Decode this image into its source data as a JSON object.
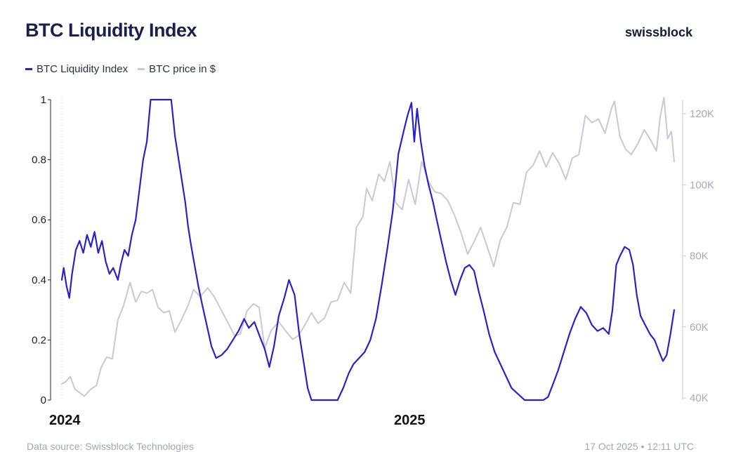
{
  "header": {
    "title": "BTC Liquidity Index",
    "brand": "swissblock"
  },
  "legend": [
    {
      "label": "BTC Liquidity Index",
      "color": "#2a22c9"
    },
    {
      "label": "BTC price in $",
      "color": "#c8c9d4"
    }
  ],
  "footer": {
    "source": "Data source: Swissblock Technologies",
    "timestamp": "17 Oct 2025 • 12:11 UTC"
  },
  "chart_data": {
    "type": "line",
    "title": "BTC Liquidity Index",
    "x_start": "2024-01-01",
    "x_end": "2025-10-17",
    "x_year_labels": [
      "2024",
      "2025"
    ],
    "y_left": {
      "label": "",
      "range": [
        0,
        1
      ],
      "ticks": [
        "0",
        "0.2",
        "0.4",
        "0.6",
        "0.8",
        "1"
      ]
    },
    "y_right": {
      "label": "",
      "range": [
        40000,
        125000
      ],
      "ticks": [
        "40K",
        "60K",
        "80K",
        "100K",
        "120K"
      ]
    },
    "grid": false,
    "legend_position": "top-left",
    "series": [
      {
        "name": "BTC Liquidity Index",
        "axis": "left",
        "color": "#2a22c9",
        "points": [
          [
            "2024-01-01",
            0.4
          ],
          [
            "2024-01-03",
            0.44
          ],
          [
            "2024-01-06",
            0.38
          ],
          [
            "2024-01-09",
            0.34
          ],
          [
            "2024-01-12",
            0.42
          ],
          [
            "2024-01-16",
            0.5
          ],
          [
            "2024-01-20",
            0.53
          ],
          [
            "2024-01-24",
            0.49
          ],
          [
            "2024-01-28",
            0.55
          ],
          [
            "2024-02-01",
            0.51
          ],
          [
            "2024-02-05",
            0.56
          ],
          [
            "2024-02-09",
            0.49
          ],
          [
            "2024-02-13",
            0.53
          ],
          [
            "2024-02-17",
            0.46
          ],
          [
            "2024-02-21",
            0.42
          ],
          [
            "2024-02-25",
            0.44
          ],
          [
            "2024-03-01",
            0.4
          ],
          [
            "2024-03-04",
            0.45
          ],
          [
            "2024-03-08",
            0.5
          ],
          [
            "2024-03-12",
            0.48
          ],
          [
            "2024-03-16",
            0.55
          ],
          [
            "2024-03-20",
            0.6
          ],
          [
            "2024-03-24",
            0.7
          ],
          [
            "2024-03-28",
            0.8
          ],
          [
            "2024-04-01",
            0.86
          ],
          [
            "2024-04-05",
            1.0
          ],
          [
            "2024-04-13",
            1.0
          ],
          [
            "2024-04-21",
            1.0
          ],
          [
            "2024-04-27",
            1.0
          ],
          [
            "2024-05-01",
            0.88
          ],
          [
            "2024-05-05",
            0.8
          ],
          [
            "2024-05-09",
            0.72
          ],
          [
            "2024-05-12",
            0.66
          ],
          [
            "2024-05-15",
            0.58
          ],
          [
            "2024-05-18",
            0.52
          ],
          [
            "2024-05-22",
            0.45
          ],
          [
            "2024-05-26",
            0.38
          ],
          [
            "2024-05-30",
            0.32
          ],
          [
            "2024-06-04",
            0.25
          ],
          [
            "2024-06-09",
            0.18
          ],
          [
            "2024-06-14",
            0.14
          ],
          [
            "2024-06-20",
            0.15
          ],
          [
            "2024-06-26",
            0.17
          ],
          [
            "2024-07-02",
            0.2
          ],
          [
            "2024-07-08",
            0.23
          ],
          [
            "2024-07-14",
            0.27
          ],
          [
            "2024-07-19",
            0.24
          ],
          [
            "2024-07-25",
            0.26
          ],
          [
            "2024-07-31",
            0.21
          ],
          [
            "2024-08-05",
            0.17
          ],
          [
            "2024-08-10",
            0.11
          ],
          [
            "2024-08-15",
            0.18
          ],
          [
            "2024-08-20",
            0.28
          ],
          [
            "2024-08-26",
            0.34
          ],
          [
            "2024-08-31",
            0.4
          ],
          [
            "2024-09-06",
            0.35
          ],
          [
            "2024-09-11",
            0.22
          ],
          [
            "2024-09-16",
            0.12
          ],
          [
            "2024-09-20",
            0.04
          ],
          [
            "2024-09-24",
            0.0
          ],
          [
            "2024-10-04",
            0.0
          ],
          [
            "2024-10-15",
            0.0
          ],
          [
            "2024-10-22",
            0.0
          ],
          [
            "2024-10-28",
            0.04
          ],
          [
            "2024-11-03",
            0.09
          ],
          [
            "2024-11-08",
            0.12
          ],
          [
            "2024-11-14",
            0.14
          ],
          [
            "2024-11-20",
            0.16
          ],
          [
            "2024-11-26",
            0.2
          ],
          [
            "2024-12-02",
            0.27
          ],
          [
            "2024-12-08",
            0.38
          ],
          [
            "2024-12-14",
            0.5
          ],
          [
            "2024-12-20",
            0.63
          ],
          [
            "2024-12-26",
            0.82
          ],
          [
            "2025-01-01",
            0.9
          ],
          [
            "2025-01-05",
            0.95
          ],
          [
            "2025-01-09",
            0.99
          ],
          [
            "2025-01-12",
            0.86
          ],
          [
            "2025-01-15",
            0.97
          ],
          [
            "2025-01-19",
            0.86
          ],
          [
            "2025-01-23",
            0.78
          ],
          [
            "2025-01-27",
            0.72
          ],
          [
            "2025-02-01",
            0.66
          ],
          [
            "2025-02-05",
            0.6
          ],
          [
            "2025-02-10",
            0.53
          ],
          [
            "2025-02-15",
            0.46
          ],
          [
            "2025-02-20",
            0.4
          ],
          [
            "2025-02-25",
            0.35
          ],
          [
            "2025-03-02",
            0.4
          ],
          [
            "2025-03-07",
            0.44
          ],
          [
            "2025-03-12",
            0.45
          ],
          [
            "2025-03-17",
            0.43
          ],
          [
            "2025-03-22",
            0.36
          ],
          [
            "2025-03-27",
            0.3
          ],
          [
            "2025-04-02",
            0.22
          ],
          [
            "2025-04-08",
            0.16
          ],
          [
            "2025-04-14",
            0.12
          ],
          [
            "2025-04-20",
            0.08
          ],
          [
            "2025-04-26",
            0.04
          ],
          [
            "2025-05-03",
            0.02
          ],
          [
            "2025-05-10",
            0.0
          ],
          [
            "2025-05-20",
            0.0
          ],
          [
            "2025-05-30",
            0.0
          ],
          [
            "2025-06-04",
            0.01
          ],
          [
            "2025-06-09",
            0.05
          ],
          [
            "2025-06-15",
            0.1
          ],
          [
            "2025-06-21",
            0.16
          ],
          [
            "2025-06-27",
            0.22
          ],
          [
            "2025-07-03",
            0.27
          ],
          [
            "2025-07-09",
            0.31
          ],
          [
            "2025-07-15",
            0.29
          ],
          [
            "2025-07-21",
            0.25
          ],
          [
            "2025-07-27",
            0.23
          ],
          [
            "2025-08-02",
            0.24
          ],
          [
            "2025-08-08",
            0.22
          ],
          [
            "2025-08-12",
            0.3
          ],
          [
            "2025-08-16",
            0.45
          ],
          [
            "2025-08-20",
            0.48
          ],
          [
            "2025-08-25",
            0.51
          ],
          [
            "2025-08-30",
            0.5
          ],
          [
            "2025-09-03",
            0.45
          ],
          [
            "2025-09-07",
            0.35
          ],
          [
            "2025-09-11",
            0.28
          ],
          [
            "2025-09-16",
            0.25
          ],
          [
            "2025-09-21",
            0.22
          ],
          [
            "2025-09-26",
            0.2
          ],
          [
            "2025-10-01",
            0.16
          ],
          [
            "2025-10-05",
            0.13
          ],
          [
            "2025-10-09",
            0.15
          ],
          [
            "2025-10-13",
            0.22
          ],
          [
            "2025-10-17",
            0.3
          ]
        ]
      },
      {
        "name": "BTC price in $",
        "axis": "right",
        "color": "#c8c9d4",
        "points": [
          [
            "2024-01-01",
            44000
          ],
          [
            "2024-01-05",
            44500
          ],
          [
            "2024-01-10",
            46000
          ],
          [
            "2024-01-15",
            42500
          ],
          [
            "2024-01-20",
            41500
          ],
          [
            "2024-01-25",
            40500
          ],
          [
            "2024-02-01",
            42500
          ],
          [
            "2024-02-07",
            43500
          ],
          [
            "2024-02-12",
            48500
          ],
          [
            "2024-02-18",
            51500
          ],
          [
            "2024-02-24",
            51000
          ],
          [
            "2024-03-01",
            62000
          ],
          [
            "2024-03-07",
            66000
          ],
          [
            "2024-03-14",
            72500
          ],
          [
            "2024-03-20",
            67000
          ],
          [
            "2024-03-26",
            70000
          ],
          [
            "2024-04-01",
            69500
          ],
          [
            "2024-04-07",
            70500
          ],
          [
            "2024-04-13",
            65500
          ],
          [
            "2024-04-19",
            64000
          ],
          [
            "2024-04-25",
            64500
          ],
          [
            "2024-05-01",
            58500
          ],
          [
            "2024-05-08",
            62000
          ],
          [
            "2024-05-15",
            66000
          ],
          [
            "2024-05-21",
            70500
          ],
          [
            "2024-05-28",
            68500
          ],
          [
            "2024-06-05",
            71000
          ],
          [
            "2024-06-12",
            68500
          ],
          [
            "2024-06-19",
            65000
          ],
          [
            "2024-06-26",
            61500
          ],
          [
            "2024-07-04",
            57500
          ],
          [
            "2024-07-10",
            58000
          ],
          [
            "2024-07-17",
            64500
          ],
          [
            "2024-07-24",
            66500
          ],
          [
            "2024-07-30",
            65500
          ],
          [
            "2024-08-05",
            54000
          ],
          [
            "2024-08-12",
            59000
          ],
          [
            "2024-08-20",
            61500
          ],
          [
            "2024-08-27",
            59000
          ],
          [
            "2024-09-04",
            56500
          ],
          [
            "2024-09-10",
            57500
          ],
          [
            "2024-09-17",
            60500
          ],
          [
            "2024-09-24",
            64000
          ],
          [
            "2024-10-01",
            61000
          ],
          [
            "2024-10-08",
            62500
          ],
          [
            "2024-10-15",
            67000
          ],
          [
            "2024-10-22",
            67500
          ],
          [
            "2024-10-29",
            72500
          ],
          [
            "2024-11-05",
            69500
          ],
          [
            "2024-11-11",
            88000
          ],
          [
            "2024-11-18",
            91000
          ],
          [
            "2024-11-22",
            99000
          ],
          [
            "2024-11-28",
            95500
          ],
          [
            "2024-12-05",
            103000
          ],
          [
            "2024-12-11",
            101000
          ],
          [
            "2024-12-17",
            106500
          ],
          [
            "2024-12-23",
            95000
          ],
          [
            "2024-12-30",
            93000
          ],
          [
            "2025-01-06",
            101500
          ],
          [
            "2025-01-13",
            94500
          ],
          [
            "2025-01-20",
            106500
          ],
          [
            "2025-01-27",
            101000
          ],
          [
            "2025-02-03",
            98000
          ],
          [
            "2025-02-10",
            97500
          ],
          [
            "2025-02-17",
            95500
          ],
          [
            "2025-02-24",
            91500
          ],
          [
            "2025-03-03",
            86500
          ],
          [
            "2025-03-10",
            80500
          ],
          [
            "2025-03-17",
            84000
          ],
          [
            "2025-03-24",
            88000
          ],
          [
            "2025-03-31",
            82500
          ],
          [
            "2025-04-07",
            77000
          ],
          [
            "2025-04-14",
            84500
          ],
          [
            "2025-04-21",
            88000
          ],
          [
            "2025-04-28",
            95000
          ],
          [
            "2025-05-05",
            94500
          ],
          [
            "2025-05-12",
            103500
          ],
          [
            "2025-05-19",
            105500
          ],
          [
            "2025-05-26",
            109500
          ],
          [
            "2025-06-02",
            105000
          ],
          [
            "2025-06-09",
            109000
          ],
          [
            "2025-06-16",
            106000
          ],
          [
            "2025-06-23",
            101500
          ],
          [
            "2025-06-30",
            107500
          ],
          [
            "2025-07-07",
            108500
          ],
          [
            "2025-07-14",
            119500
          ],
          [
            "2025-07-21",
            117500
          ],
          [
            "2025-07-28",
            118500
          ],
          [
            "2025-08-04",
            114500
          ],
          [
            "2025-08-11",
            121500
          ],
          [
            "2025-08-14",
            123500
          ],
          [
            "2025-08-20",
            113500
          ],
          [
            "2025-08-26",
            110000
          ],
          [
            "2025-09-01",
            108500
          ],
          [
            "2025-09-08",
            111500
          ],
          [
            "2025-09-15",
            115500
          ],
          [
            "2025-09-22",
            112500
          ],
          [
            "2025-09-28",
            109500
          ],
          [
            "2025-10-02",
            119000
          ],
          [
            "2025-10-06",
            124500
          ],
          [
            "2025-10-10",
            113000
          ],
          [
            "2025-10-14",
            115000
          ],
          [
            "2025-10-17",
            106500
          ]
        ]
      }
    ]
  }
}
